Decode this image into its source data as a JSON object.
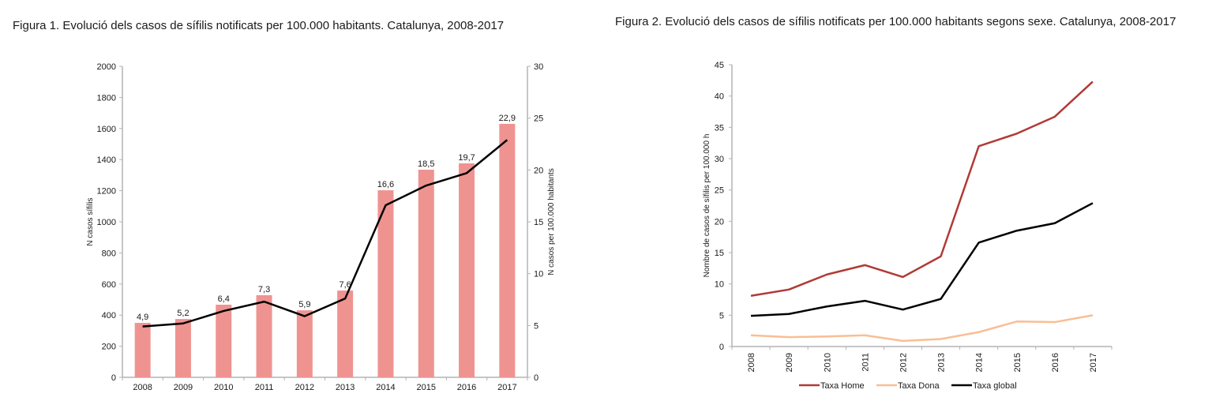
{
  "chart_data": [
    {
      "type": "bar",
      "title": "Figura 1. Evolució dels casos de sífilis notificats per 100.000 habitants. Catalunya, 2008-2017",
      "categories": [
        "2008",
        "2009",
        "2010",
        "2011",
        "2012",
        "2013",
        "2014",
        "2015",
        "2016",
        "2017"
      ],
      "series": [
        {
          "name": "N casos sífilis",
          "kind": "bar",
          "axis": "left",
          "color": "#ef9391",
          "values": [
            350,
            375,
            467,
            528,
            431,
            558,
            1203,
            1335,
            1376,
            1630
          ]
        },
        {
          "name": "N casos per 100.000 habitants",
          "kind": "line",
          "axis": "right",
          "color": "#000000",
          "values": [
            4.9,
            5.2,
            6.4,
            7.3,
            5.9,
            7.6,
            16.6,
            18.5,
            19.7,
            22.9
          ],
          "labels": [
            "4,9",
            "5,2",
            "6,4",
            "7,3",
            "5,9",
            "7,6",
            "16,6",
            "18,5",
            "19,7",
            "22,9"
          ]
        }
      ],
      "ylabel": "N casos sífilis",
      "ylim": [
        0,
        2000
      ],
      "yticks": [
        "0",
        "200",
        "400",
        "600",
        "800",
        "1000",
        "1200",
        "1400",
        "1600",
        "1800",
        "2000"
      ],
      "y2label": "N casos per 100.000 habitants",
      "y2lim": [
        0,
        30
      ],
      "y2ticks": [
        "0",
        "5",
        "10",
        "15",
        "20",
        "25",
        "30"
      ],
      "xlabel": "",
      "grid": false,
      "legend": "none"
    },
    {
      "type": "line",
      "title": "Figura 2. Evolució dels casos de sífilis notificats per 100.000 habitants segons sexe. Catalunya, 2008-2017",
      "categories": [
        "2008",
        "2009",
        "2010",
        "2011",
        "2012",
        "2013",
        "2014",
        "2015",
        "2016",
        "2017"
      ],
      "series": [
        {
          "name": "Taxa Home",
          "color": "#b03a36",
          "values": [
            8.1,
            9.1,
            11.5,
            13.0,
            11.1,
            14.4,
            32.0,
            34.0,
            36.7,
            42.3
          ]
        },
        {
          "name": "Taxa Dona",
          "color": "#f9be95",
          "values": [
            1.8,
            1.5,
            1.6,
            1.8,
            0.9,
            1.2,
            2.3,
            4.0,
            3.9,
            5.0
          ]
        },
        {
          "name": "Taxa global",
          "color": "#000000",
          "values": [
            4.9,
            5.2,
            6.4,
            7.3,
            5.9,
            7.6,
            16.6,
            18.5,
            19.7,
            22.9
          ]
        }
      ],
      "ylabel": "Nombre de casos de sífilis per 100.000 h",
      "ylim": [
        0,
        45
      ],
      "yticks": [
        "0",
        "5",
        "10",
        "15",
        "20",
        "25",
        "30",
        "35",
        "40",
        "45"
      ],
      "xlabel": "",
      "grid": false,
      "legend": "bottom"
    }
  ],
  "colors": {
    "axis": "#b3b3b3",
    "text": "#1a1a1a"
  }
}
